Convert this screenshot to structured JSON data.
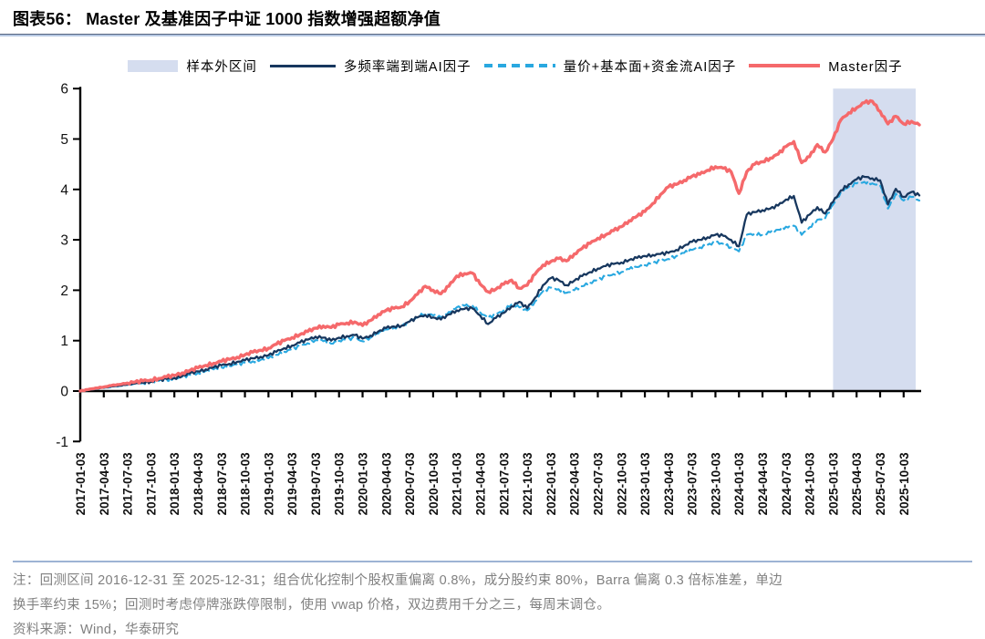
{
  "title": "图表56：  Master 及基准因子中证 1000 指数增强超额净值",
  "legend": {
    "out_of_sample": "样本外区间",
    "series_navy": "多频率端到端AI因子",
    "series_cyan": "量价+基本面+资金流AI因子",
    "series_red": "Master因子"
  },
  "colors": {
    "navy": "#17375E",
    "cyan": "#29A8E0",
    "red": "#F5696B",
    "shade": "#D5DDEF",
    "axis": "#000000",
    "note_text": "#808080",
    "note_rule": "#9DB3D4"
  },
  "notes": {
    "line1": "注：回测区间 2016-12-31 至 2025-12-31；组合优化控制个股权重偏离 0.8%，成分股约束 80%，Barra 偏离 0.3 倍标准差，单边",
    "line2": "换手率约束 15%；回测时考虑停牌涨跌停限制，使用 vwap 价格，双边费用千分之三，每周末调仓。",
    "source": "资料来源：Wind，华泰研究"
  },
  "chart_data": {
    "type": "line",
    "title": "Master 及基准因子中证 1000 指数增强超额净值",
    "xlabel": "",
    "ylabel": "",
    "ylim": [
      -1,
      6
    ],
    "yticks": [
      6,
      5,
      4,
      3,
      2,
      1,
      0,
      -1
    ],
    "grid": false,
    "legend_position": "top",
    "x_freq": "monthly",
    "x_start": "2017-01",
    "x_end": "2025-12",
    "n_points": 108,
    "out_of_sample_start_index": 96,
    "out_of_sample_label": "样本外区间",
    "x_tick_every_months": 3,
    "x_tick_labels": [
      "2017-01-03",
      "2017-04-03",
      "2017-07-03",
      "2017-10-03",
      "2018-01-03",
      "2018-04-03",
      "2018-07-03",
      "2018-10-03",
      "2019-01-03",
      "2019-04-03",
      "2019-07-03",
      "2019-10-03",
      "2020-01-03",
      "2020-04-03",
      "2020-07-03",
      "2020-10-03",
      "2021-01-03",
      "2021-04-03",
      "2021-07-03",
      "2021-10-03",
      "2022-01-03",
      "2022-04-03",
      "2022-07-03",
      "2022-10-03",
      "2023-01-03",
      "2023-04-03",
      "2023-07-03",
      "2023-10-03",
      "2024-01-03",
      "2024-04-03",
      "2024-07-03",
      "2024-10-03",
      "2025-01-03",
      "2025-04-03",
      "2025-07-03",
      "2025-10-03"
    ],
    "series": [
      {
        "name": "量价+基本面+资金流AI因子",
        "color": "#29A8E0",
        "style": "dashed",
        "values": [
          0.0,
          0.02,
          0.04,
          0.06,
          0.08,
          0.1,
          0.12,
          0.14,
          0.16,
          0.18,
          0.2,
          0.22,
          0.24,
          0.28,
          0.32,
          0.36,
          0.4,
          0.43,
          0.47,
          0.5,
          0.53,
          0.56,
          0.59,
          0.62,
          0.65,
          0.72,
          0.78,
          0.83,
          0.89,
          0.95,
          1.01,
          0.99,
          0.94,
          1.0,
          1.03,
          1.05,
          0.99,
          1.06,
          1.14,
          1.22,
          1.26,
          1.29,
          1.38,
          1.47,
          1.54,
          1.5,
          1.46,
          1.57,
          1.66,
          1.69,
          1.7,
          1.56,
          1.45,
          1.52,
          1.6,
          1.72,
          1.66,
          1.6,
          1.78,
          1.98,
          2.05,
          2.02,
          1.95,
          2.0,
          2.08,
          2.15,
          2.21,
          2.27,
          2.32,
          2.36,
          2.42,
          2.46,
          2.5,
          2.54,
          2.58,
          2.62,
          2.68,
          2.74,
          2.8,
          2.85,
          2.9,
          2.95,
          2.92,
          2.85,
          2.77,
          3.1,
          3.12,
          3.1,
          3.15,
          3.2,
          3.26,
          3.28,
          3.1,
          3.25,
          3.4,
          3.43,
          3.7,
          3.95,
          4.05,
          4.12,
          4.15,
          4.12,
          4.08,
          3.62,
          3.92,
          3.78,
          3.85,
          3.78
        ]
      },
      {
        "name": "多频率端到端AI因子",
        "color": "#17375E",
        "style": "solid",
        "values": [
          0.0,
          0.02,
          0.05,
          0.07,
          0.09,
          0.11,
          0.13,
          0.15,
          0.17,
          0.19,
          0.22,
          0.24,
          0.26,
          0.3,
          0.35,
          0.39,
          0.43,
          0.47,
          0.51,
          0.54,
          0.58,
          0.61,
          0.65,
          0.68,
          0.71,
          0.78,
          0.85,
          0.9,
          0.96,
          1.02,
          1.08,
          1.06,
          1.0,
          1.06,
          1.09,
          1.11,
          1.04,
          1.1,
          1.18,
          1.25,
          1.28,
          1.3,
          1.38,
          1.46,
          1.51,
          1.46,
          1.42,
          1.52,
          1.6,
          1.63,
          1.64,
          1.5,
          1.33,
          1.45,
          1.55,
          1.68,
          1.77,
          1.64,
          1.85,
          2.1,
          2.24,
          2.2,
          2.1,
          2.19,
          2.28,
          2.36,
          2.43,
          2.48,
          2.52,
          2.55,
          2.6,
          2.64,
          2.68,
          2.7,
          2.72,
          2.74,
          2.8,
          2.88,
          2.96,
          3.0,
          3.05,
          3.1,
          3.08,
          3.0,
          2.87,
          3.5,
          3.55,
          3.59,
          3.62,
          3.68,
          3.8,
          3.87,
          3.34,
          3.5,
          3.65,
          3.52,
          3.75,
          3.98,
          4.1,
          4.2,
          4.25,
          4.22,
          4.18,
          3.7,
          4.01,
          3.85,
          3.95,
          3.88
        ]
      },
      {
        "name": "Master因子",
        "color": "#F5696B",
        "style": "solid",
        "values": [
          0.0,
          0.03,
          0.06,
          0.08,
          0.11,
          0.13,
          0.16,
          0.18,
          0.2,
          0.22,
          0.25,
          0.28,
          0.31,
          0.36,
          0.41,
          0.46,
          0.51,
          0.55,
          0.59,
          0.63,
          0.67,
          0.72,
          0.77,
          0.81,
          0.85,
          0.93,
          1.0,
          1.06,
          1.12,
          1.18,
          1.25,
          1.29,
          1.26,
          1.32,
          1.35,
          1.37,
          1.3,
          1.4,
          1.52,
          1.6,
          1.64,
          1.67,
          1.78,
          1.92,
          2.08,
          2.0,
          1.93,
          2.08,
          2.28,
          2.33,
          2.34,
          2.12,
          1.97,
          2.02,
          2.12,
          2.2,
          2.04,
          2.1,
          2.32,
          2.5,
          2.57,
          2.63,
          2.58,
          2.72,
          2.83,
          2.93,
          3.03,
          3.1,
          3.18,
          3.26,
          3.38,
          3.47,
          3.56,
          3.72,
          3.9,
          4.05,
          4.1,
          4.18,
          4.26,
          4.3,
          4.38,
          4.45,
          4.42,
          4.35,
          3.92,
          4.35,
          4.5,
          4.55,
          4.62,
          4.7,
          4.85,
          4.95,
          4.53,
          4.65,
          4.89,
          4.74,
          5.0,
          5.38,
          5.52,
          5.62,
          5.72,
          5.75,
          5.55,
          5.3,
          5.45,
          5.3,
          5.35,
          5.28
        ]
      }
    ]
  }
}
